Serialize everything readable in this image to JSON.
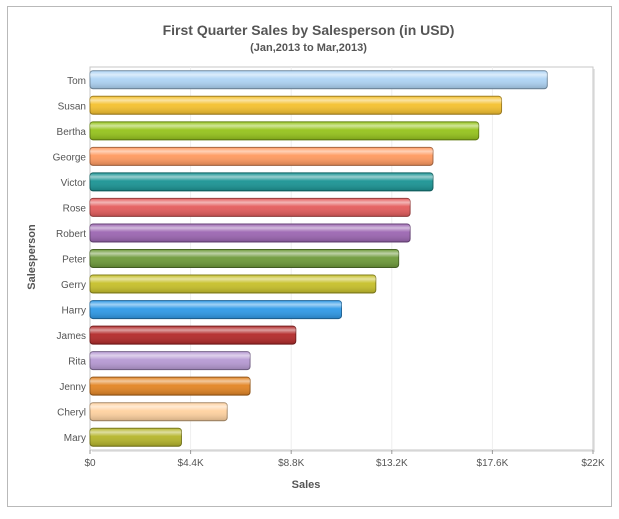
{
  "chart_data": {
    "type": "bar",
    "orientation": "horizontal",
    "title": "First Quarter Sales by Salesperson (in USD)",
    "subtitle": "(Jan,2013 to Mar,2013)",
    "xlabel": "Sales",
    "ylabel": "Salesperson",
    "xlim": [
      0,
      22000
    ],
    "ticks": [
      {
        "value": 0,
        "label": "$0"
      },
      {
        "value": 4400,
        "label": "$4.4K"
      },
      {
        "value": 8800,
        "label": "$8.8K"
      },
      {
        "value": 13200,
        "label": "$13.2K"
      },
      {
        "value": 17600,
        "label": "$17.6K"
      },
      {
        "value": 22000,
        "label": "$22K"
      }
    ],
    "categories": [
      "Tom",
      "Susan",
      "Bertha",
      "George",
      "Victor",
      "Rose",
      "Robert",
      "Peter",
      "Gerry",
      "Harry",
      "James",
      "Rita",
      "Jenny",
      "Cheryl",
      "Mary"
    ],
    "values": [
      20000,
      18000,
      17000,
      15000,
      15000,
      14000,
      14000,
      13500,
      12500,
      11000,
      9000,
      7000,
      7000,
      6000,
      4000
    ],
    "colors": [
      "#aed4f5",
      "#f5c12e",
      "#96c41c",
      "#ff9a60",
      "#1a9494",
      "#e45c5c",
      "#9c66b2",
      "#6e9a3a",
      "#c7c02a",
      "#2f9ae8",
      "#b32a2a",
      "#b79ad4",
      "#e38524",
      "#ffd2a0",
      "#b5b52a"
    ]
  }
}
